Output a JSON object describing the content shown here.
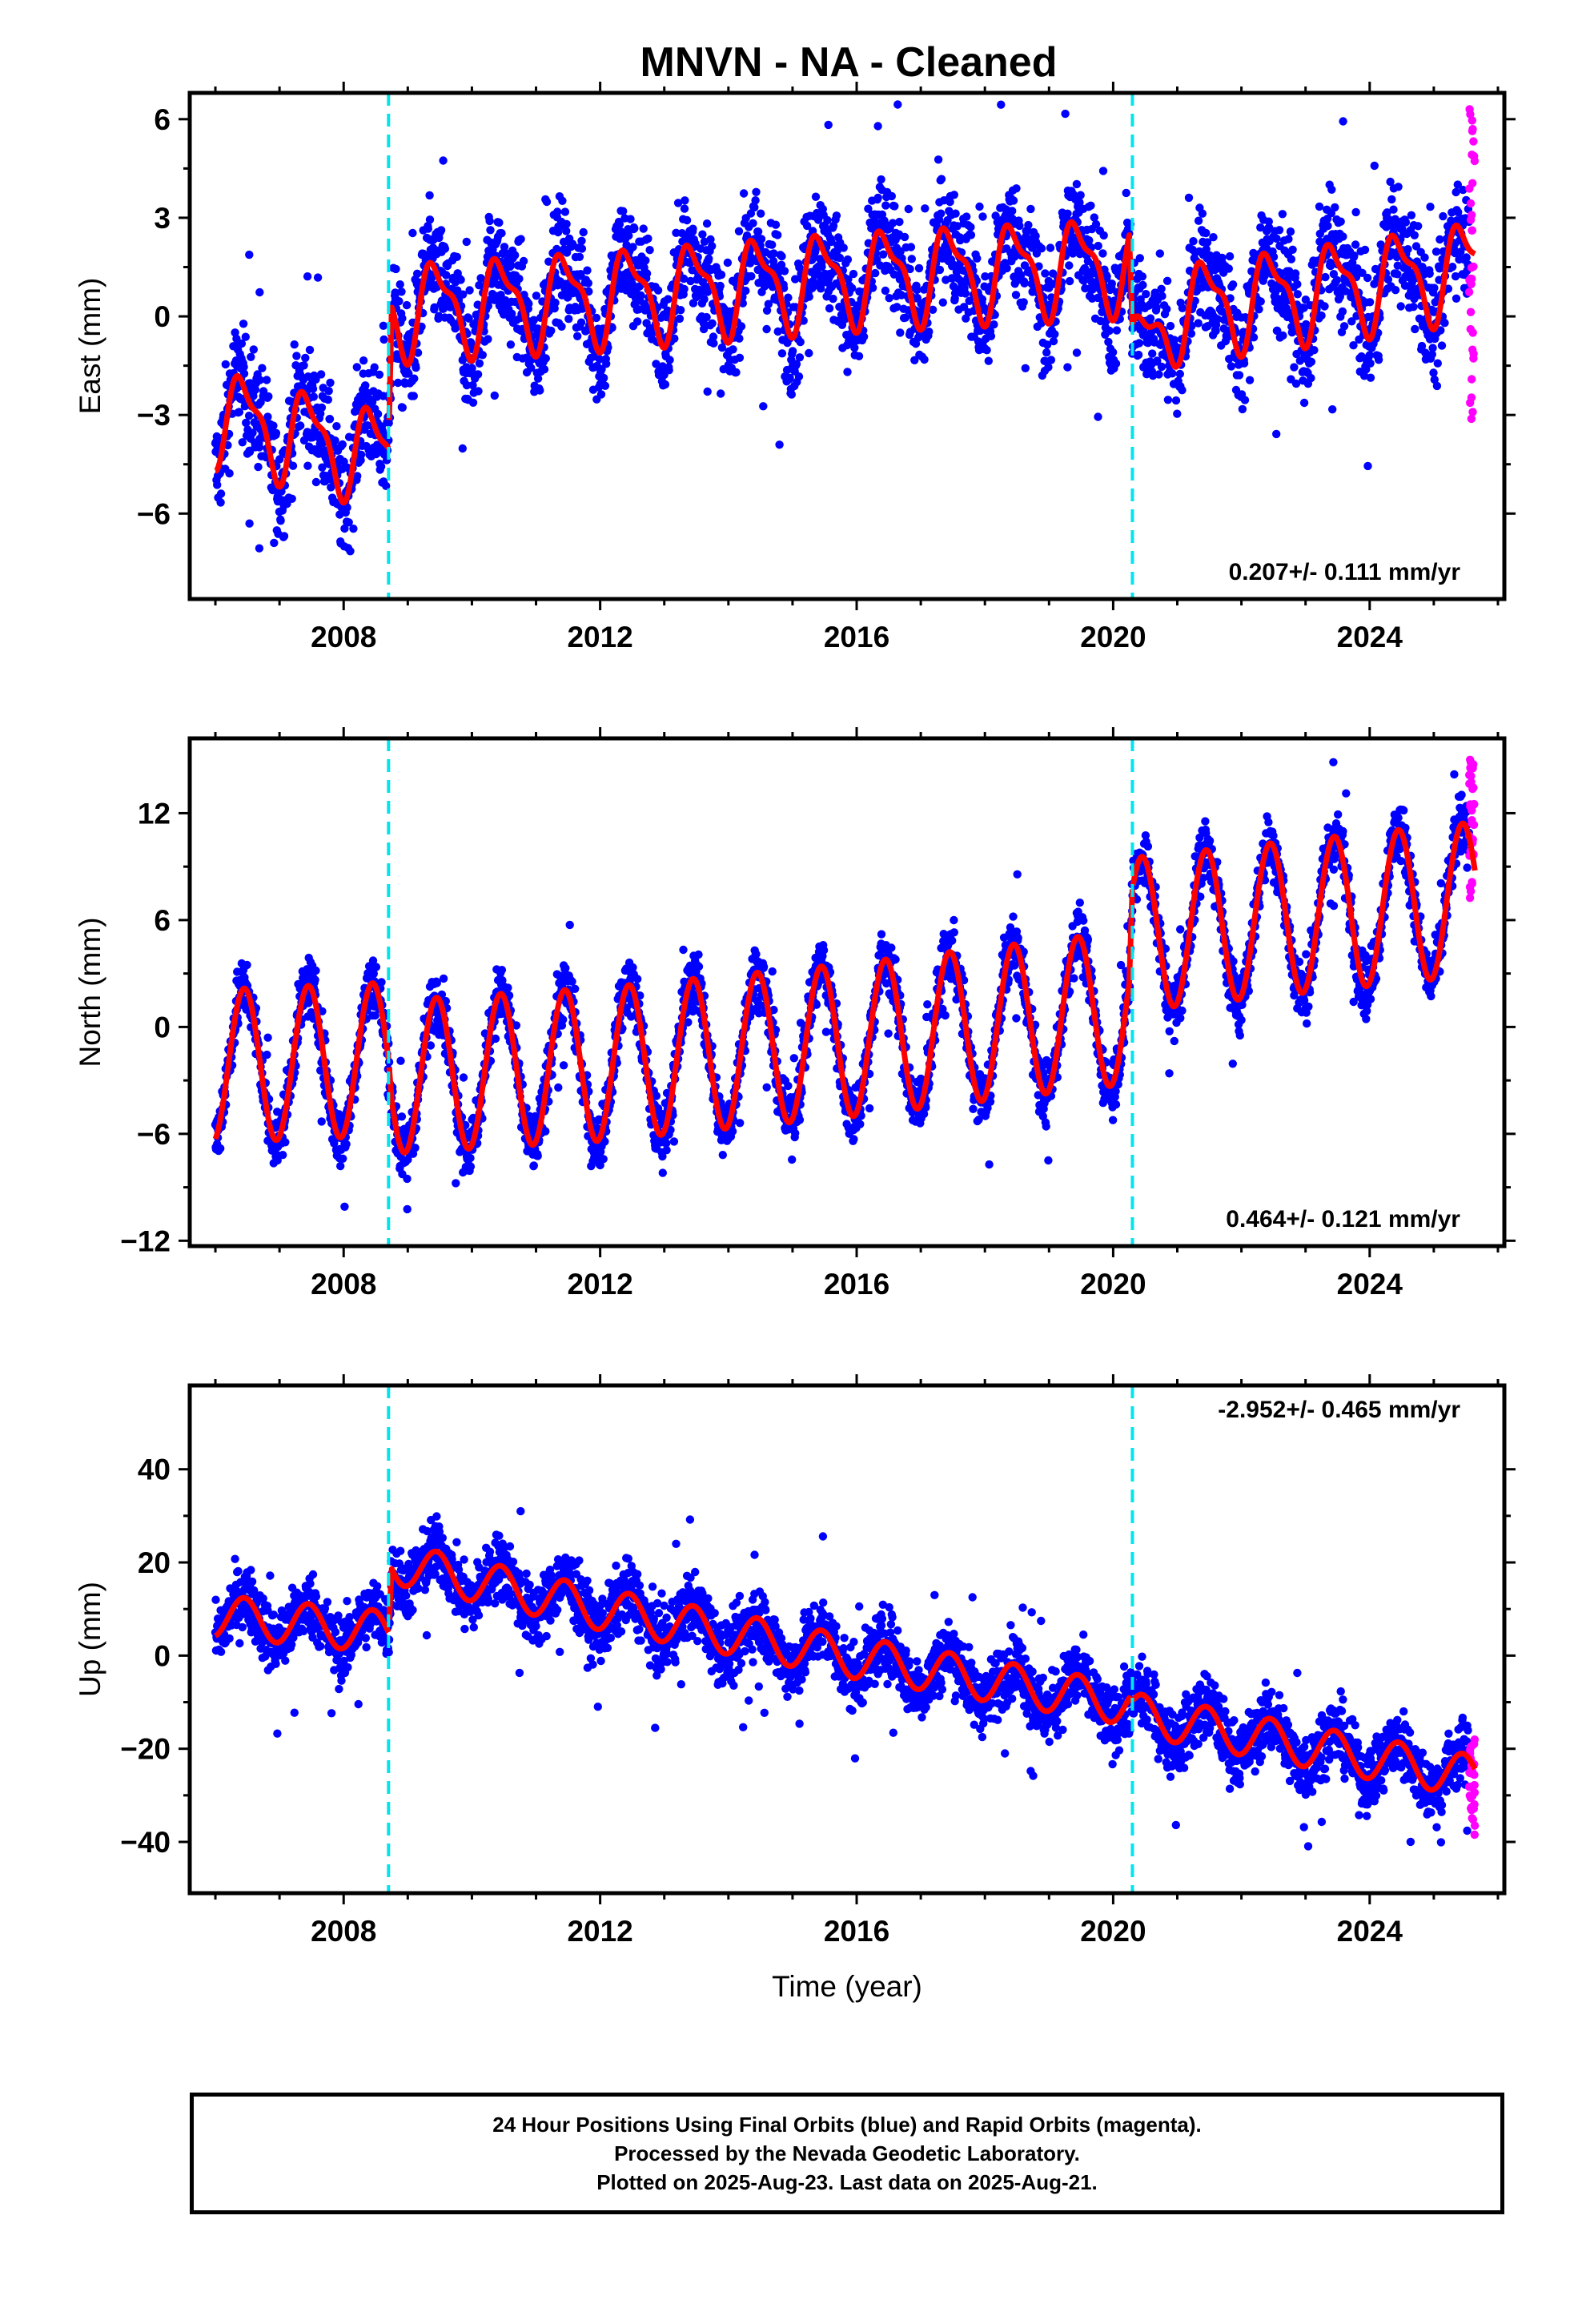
{
  "title": "MNVN  - NA - Cleaned",
  "xlabel": "Time (year)",
  "footer": {
    "line1": "24 Hour Positions Using Final Orbits (blue) and Rapid Orbits (magenta).",
    "line2": "Processed by the Nevada Geodetic Laboratory.",
    "line3": "Plotted on 2025-Aug-23. Last data on 2025-Aug-21."
  },
  "colors": {
    "final_orbits": "#0000ff",
    "rapid_orbits": "#ff00ff",
    "model_fit": "#ff0000",
    "equipment_change": "#00e5ee"
  },
  "chart_data": [
    {
      "type": "scatter",
      "panel": "east",
      "ylabel": "East (mm)",
      "xlim": [
        2005.6,
        2026.1
      ],
      "ylim": [
        -8.6,
        6.8
      ],
      "xticks": [
        "2008",
        "2012",
        "2016",
        "2020",
        "2024"
      ],
      "yticks": [
        "6",
        "3",
        "0",
        "-3",
        "-6"
      ],
      "rate_label": "0.207+/- 0.111 mm/yr",
      "rate_label_position": "bottom-right",
      "equipment_changes": [
        2008.7,
        2020.3
      ],
      "data_start": 2006.0,
      "rapid_start": 2025.55,
      "data_end": 2025.64,
      "series": [
        {
          "name": "Final Orbits (blue)",
          "marker": "dot",
          "points_summary": "daily positions, model value plus scatter of roughly +/-1.5 mm"
        },
        {
          "name": "Rapid Orbits (magenta)",
          "marker": "dot",
          "values_range": [
            -3.3,
            6.6
          ]
        },
        {
          "name": "Model",
          "line": true,
          "knots": [
            [
              2006.0,
              -3.0
            ],
            [
              2008.7,
              -4.3
            ],
            [
              2008.75,
              0.2
            ],
            [
              2012.0,
              0.6
            ],
            [
              2016.0,
              1.2
            ],
            [
              2020.25,
              1.6
            ],
            [
              2020.3,
              -1.5
            ],
            [
              2021.0,
              0.2
            ],
            [
              2024.0,
              1.0
            ],
            [
              2025.64,
              1.5
            ]
          ],
          "annual_amplitude": 1.3,
          "semiannual_amplitude": 0.5
        }
      ]
    },
    {
      "type": "scatter",
      "panel": "north",
      "ylabel": "North (mm)",
      "xlim": [
        2005.6,
        2026.1
      ],
      "ylim": [
        -12.3,
        16.2
      ],
      "xticks": [
        "2008",
        "2012",
        "2016",
        "2020",
        "2024"
      ],
      "yticks": [
        "12",
        "6",
        "0",
        "-6",
        "-12"
      ],
      "rate_label": "0.464+/- 0.121 mm/yr",
      "rate_label_position": "bottom-right",
      "equipment_changes": [
        2008.7,
        2020.3
      ],
      "data_start": 2006.0,
      "rapid_start": 2025.55,
      "data_end": 2025.64,
      "series": [
        {
          "name": "Final Orbits (blue)",
          "marker": "dot",
          "points_summary": "daily positions, model value plus scatter of roughly +/-1.5 mm"
        },
        {
          "name": "Rapid Orbits (magenta)",
          "marker": "dot",
          "values_range": [
            6.8,
            15.0
          ]
        },
        {
          "name": "Model",
          "line": true,
          "knots": [
            [
              2006.0,
              -2.2
            ],
            [
              2008.7,
              -1.8
            ],
            [
              2008.75,
              -2.8
            ],
            [
              2012.0,
              -2.1
            ],
            [
              2016.0,
              -0.7
            ],
            [
              2020.25,
              1.1
            ],
            [
              2020.3,
              5.2
            ],
            [
              2024.0,
              6.6
            ],
            [
              2025.64,
              7.2
            ]
          ],
          "annual_amplitude": 4.3,
          "semiannual_amplitude": 0.0
        }
      ]
    },
    {
      "type": "scatter",
      "panel": "up",
      "ylabel": "Up (mm)",
      "xlim": [
        2005.6,
        2026.1
      ],
      "ylim": [
        -51.0,
        58.0
      ],
      "xticks": [
        "2008",
        "2012",
        "2016",
        "2020",
        "2024"
      ],
      "yticks": [
        "40",
        "20",
        "0",
        "-20",
        "-40"
      ],
      "rate_label": "-2.952+/- 0.465 mm/yr",
      "rate_label_position": "top-right",
      "equipment_changes": [
        2008.7,
        2020.3
      ],
      "data_start": 2006.0,
      "rapid_start": 2025.55,
      "data_end": 2025.64,
      "series": [
        {
          "name": "Final Orbits (blue)",
          "marker": "dot",
          "points_summary": "daily positions, model value plus scatter of roughly +/-6 mm"
        },
        {
          "name": "Rapid Orbits (magenta)",
          "marker": "dot",
          "values_range": [
            -39.0,
            -17.0
          ]
        },
        {
          "name": "Model",
          "line": true,
          "knots": [
            [
              2006.0,
              8.5
            ],
            [
              2008.7,
              5.0
            ],
            [
              2008.75,
              20.0
            ],
            [
              2012.0,
              10.0
            ],
            [
              2016.0,
              -0.5
            ],
            [
              2020.25,
              -10.5
            ],
            [
              2020.3,
              -12.5
            ],
            [
              2024.0,
              -22.0
            ],
            [
              2025.64,
              -26.0
            ]
          ],
          "annual_amplitude": 4.5,
          "semiannual_amplitude": 0.0
        }
      ]
    }
  ]
}
